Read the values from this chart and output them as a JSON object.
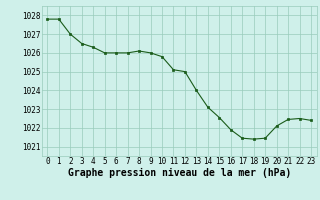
{
  "x": [
    0,
    1,
    2,
    3,
    4,
    5,
    6,
    7,
    8,
    9,
    10,
    11,
    12,
    13,
    14,
    15,
    16,
    17,
    18,
    19,
    20,
    21,
    22,
    23
  ],
  "y": [
    1027.8,
    1027.8,
    1027.0,
    1026.5,
    1026.3,
    1026.0,
    1026.0,
    1026.0,
    1026.1,
    1026.0,
    1025.8,
    1025.1,
    1025.0,
    1024.0,
    1023.1,
    1022.55,
    1021.9,
    1021.45,
    1021.4,
    1021.45,
    1022.1,
    1022.45,
    1022.5,
    1022.4
  ],
  "ylim": [
    1020.5,
    1028.5
  ],
  "yticks": [
    1021,
    1022,
    1023,
    1024,
    1025,
    1026,
    1027,
    1028
  ],
  "xticks": [
    0,
    1,
    2,
    3,
    4,
    5,
    6,
    7,
    8,
    9,
    10,
    11,
    12,
    13,
    14,
    15,
    16,
    17,
    18,
    19,
    20,
    21,
    22,
    23
  ],
  "xlabel": "Graphe pression niveau de la mer (hPa)",
  "line_color": "#1a5c1a",
  "marker_color": "#1a5c1a",
  "bg_color": "#cff0ea",
  "grid_color": "#99ccbb",
  "xlabel_fontsize": 7,
  "tick_fontsize": 5.5
}
